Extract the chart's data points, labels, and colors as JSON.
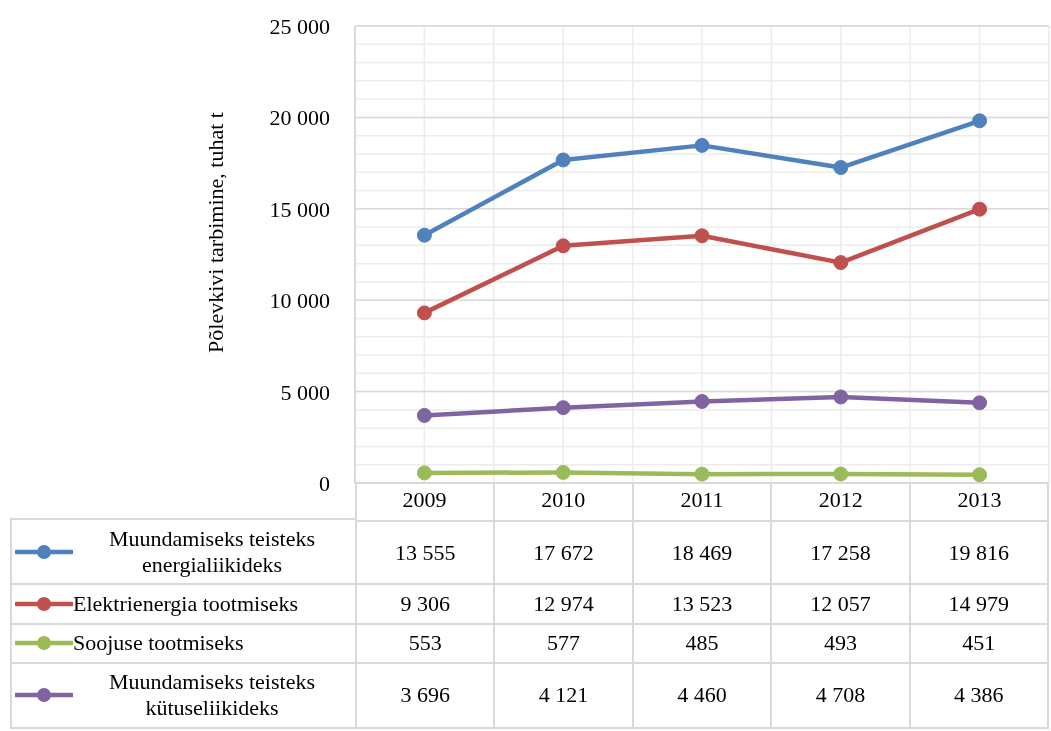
{
  "chart_data": {
    "type": "line",
    "ylabel": "Põlevkivi tarbimine, tuhat t",
    "categories": [
      "2009",
      "2010",
      "2011",
      "2012",
      "2013"
    ],
    "series": [
      {
        "name": "Muundamiseks teisteks energialiikideks",
        "color": "#4f81bd",
        "values": [
          13555,
          17672,
          18469,
          17258,
          19816
        ],
        "value_labels": [
          "13 555",
          "17 672",
          "18 469",
          "17 258",
          "19 816"
        ]
      },
      {
        "name": "Elektrienergia tootmiseks",
        "color": "#c0504d",
        "values": [
          9306,
          12974,
          13523,
          12057,
          14979
        ],
        "value_labels": [
          "9 306",
          "12 974",
          "13 523",
          "12 057",
          "14 979"
        ]
      },
      {
        "name": "Soojuse tootmiseks",
        "color": "#9bbb59",
        "values": [
          553,
          577,
          485,
          493,
          451
        ],
        "value_labels": [
          "553",
          "577",
          "485",
          "493",
          "451"
        ]
      },
      {
        "name": "Muundamiseks teisteks kütuseliikideks",
        "color": "#8064a2",
        "values": [
          3696,
          4121,
          4460,
          4708,
          4386
        ],
        "value_labels": [
          "3 696",
          "4 121",
          "4 460",
          "4 708",
          "4 386"
        ]
      }
    ],
    "ylim": [
      0,
      25000
    ],
    "yticks": [
      0,
      {
        "value": 1000,
        "label": null
      },
      {
        "value": 2000,
        "label": null
      },
      {
        "value": 3000,
        "label": null
      },
      {
        "value": 4000,
        "label": null
      },
      {
        "value": 5000,
        "label": "5 000"
      },
      {
        "value": 6000,
        "label": null
      },
      {
        "value": 7000,
        "label": null
      },
      {
        "value": 8000,
        "label": null
      },
      {
        "value": 9000,
        "label": null
      },
      {
        "value": 10000,
        "label": "10 000"
      },
      {
        "value": 11000,
        "label": null
      },
      {
        "value": 12000,
        "label": null
      },
      {
        "value": 13000,
        "label": null
      },
      {
        "value": 14000,
        "label": null
      },
      {
        "value": 15000,
        "label": "15 000"
      },
      {
        "value": 16000,
        "label": null
      },
      {
        "value": 17000,
        "label": null
      },
      {
        "value": 18000,
        "label": null
      },
      {
        "value": 19000,
        "label": null
      },
      {
        "value": 20000,
        "label": "20 000"
      },
      {
        "value": 21000,
        "label": null
      },
      {
        "value": 22000,
        "label": null
      },
      {
        "value": 23000,
        "label": null
      },
      {
        "value": 24000,
        "label": null
      },
      {
        "value": 25000,
        "label": "25 000"
      }
    ],
    "grid": true,
    "legend": "bottom",
    "marker": "circle"
  }
}
